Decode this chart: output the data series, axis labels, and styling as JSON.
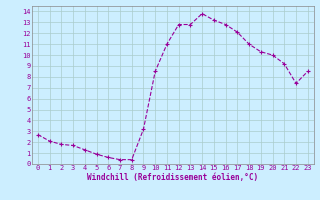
{
  "x": [
    0,
    1,
    2,
    3,
    4,
    5,
    6,
    7,
    8,
    9,
    10,
    11,
    12,
    13,
    14,
    15,
    16,
    17,
    18,
    19,
    20,
    21,
    22,
    23
  ],
  "y": [
    2.7,
    2.1,
    1.8,
    1.7,
    1.3,
    0.9,
    0.6,
    0.4,
    0.4,
    3.2,
    8.5,
    11.0,
    12.8,
    12.8,
    13.8,
    13.2,
    12.8,
    12.1,
    11.0,
    10.3,
    10.0,
    9.2,
    7.4,
    8.5
  ],
  "line_color": "#990099",
  "marker": "+",
  "marker_size": 3,
  "marker_linewidth": 0.8,
  "line_width": 0.8,
  "xlabel": "Windchill (Refroidissement éolien,°C)",
  "ylabel_ticks": [
    0,
    1,
    2,
    3,
    4,
    5,
    6,
    7,
    8,
    9,
    10,
    11,
    12,
    13,
    14
  ],
  "xticks": [
    0,
    1,
    2,
    3,
    4,
    5,
    6,
    7,
    8,
    9,
    10,
    11,
    12,
    13,
    14,
    15,
    16,
    17,
    18,
    19,
    20,
    21,
    22,
    23
  ],
  "xlim": [
    -0.5,
    23.5
  ],
  "ylim": [
    0,
    14.5
  ],
  "bg_color": "#cceeff",
  "grid_color": "#aacccc",
  "tick_fontsize": 5,
  "xlabel_fontsize": 5.5
}
